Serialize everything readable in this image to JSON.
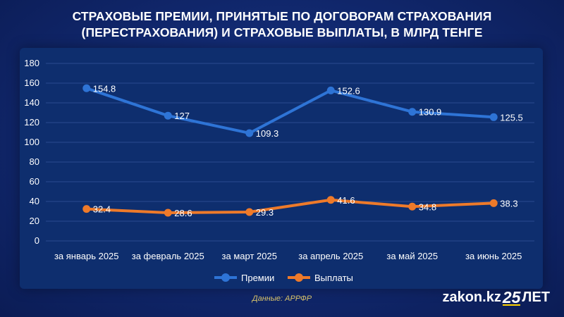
{
  "title_line1": "СТРАХОВЫЕ ПРЕМИИ, ПРИНЯТЫЕ ПО ДОГОВОРАМ СТРАХОВАНИЯ",
  "title_line2": "(ПЕРЕСТРАХОВАНИЯ) И СТРАХОВЫЕ ВЫПЛАТЫ, В МЛРД ТЕНГЕ",
  "source": "Данные: АРРФР",
  "brand": {
    "name": "zakon.kz",
    "years": "25",
    "suffix": "ЛЕТ"
  },
  "colors": {
    "premii": "#2e74d6",
    "vyplaty": "#ee7a2a",
    "text": "#ffffff",
    "grid": "#2a4a90"
  },
  "chart_data": {
    "type": "line",
    "categories": [
      "за январь 2025",
      "за февраль 2025",
      "за март 2025",
      "за апрель 2025",
      "за май 2025",
      "за июнь 2025"
    ],
    "series": [
      {
        "name": "Премии",
        "values": [
          154.8,
          127,
          109.3,
          152.6,
          130.9,
          125.5
        ],
        "labels": [
          "154.8",
          "127",
          "109.3",
          "152.6",
          "130.9",
          "125.5"
        ]
      },
      {
        "name": "Выплаты",
        "values": [
          32.4,
          28.6,
          29.3,
          41.6,
          34.8,
          38.3
        ],
        "labels": [
          "32.4",
          "28.6",
          "29.3",
          "41.6",
          "34.8",
          "38.3"
        ]
      }
    ],
    "ylim": [
      0,
      180
    ],
    "yticks": [
      "0",
      "20",
      "40",
      "60",
      "80",
      "100",
      "120",
      "140",
      "160",
      "180"
    ],
    "legend": "bottom"
  }
}
